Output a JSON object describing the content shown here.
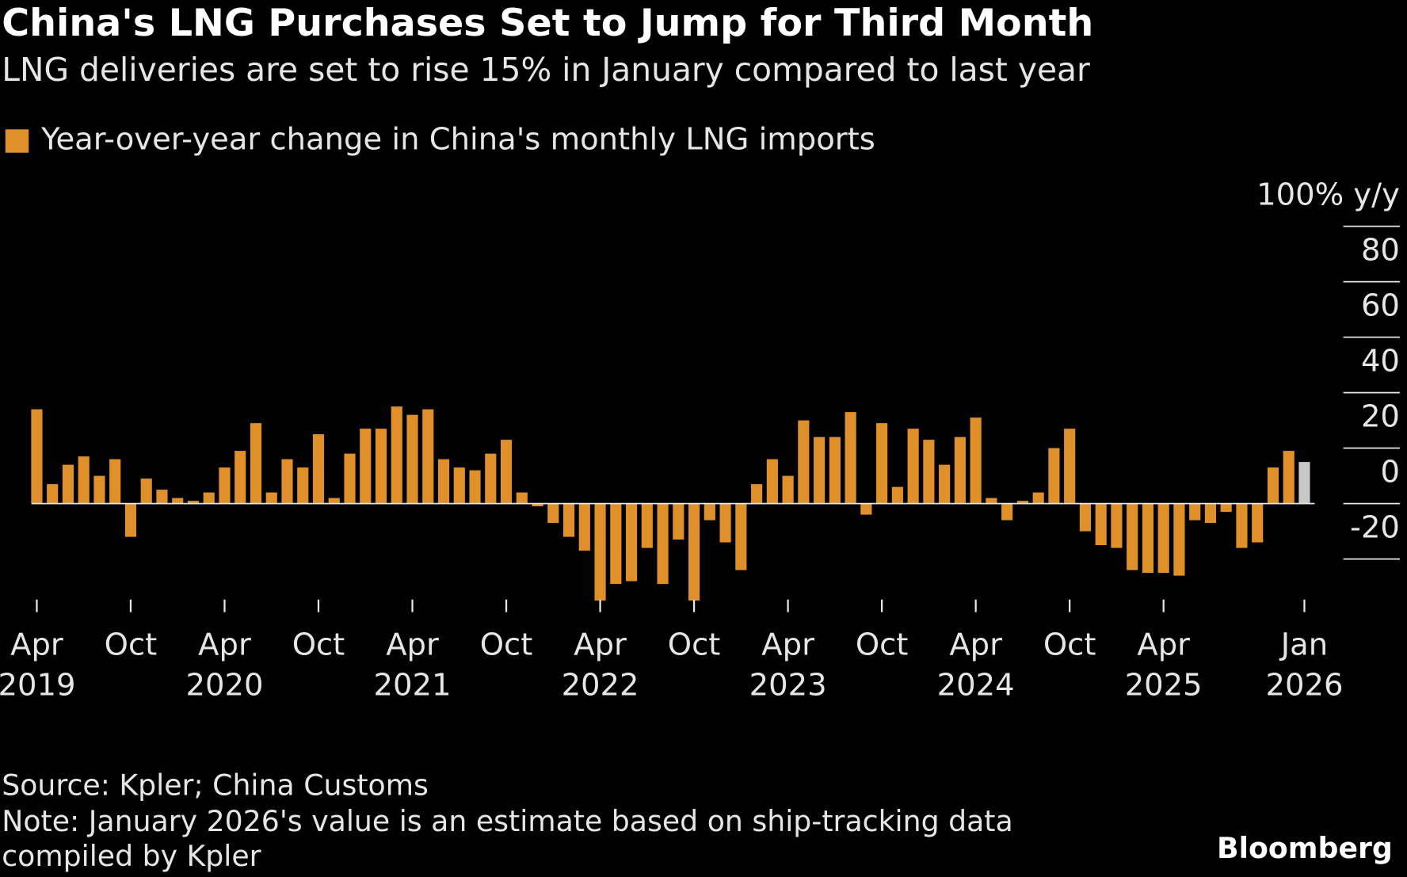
{
  "chart_data": {
    "type": "bar",
    "title": "China's LNG Purchases Set to Jump for Third Month",
    "subtitle": "LNG deliveries are set to rise 15% in January compared to last year",
    "source": "Source: Kpler; China Customs",
    "note": "Note: January 2026's value is an estimate based on ship-tracking data compiled by Kpler",
    "brand": "Bloomberg",
    "categories": [
      "Apr 2019",
      null,
      null,
      null,
      null,
      null,
      "Oct",
      null,
      null,
      null,
      null,
      null,
      "Apr 2020",
      null,
      null,
      null,
      null,
      null,
      "Oct",
      null,
      null,
      null,
      null,
      null,
      "Apr 2021",
      null,
      null,
      null,
      null,
      null,
      "Oct",
      null,
      null,
      null,
      null,
      null,
      "Apr 2022",
      null,
      null,
      null,
      null,
      null,
      "Oct",
      null,
      null,
      null,
      null,
      null,
      "Apr 2023",
      null,
      null,
      null,
      null,
      null,
      "Oct",
      null,
      null,
      null,
      null,
      null,
      "Apr 2024",
      null,
      null,
      null,
      null,
      null,
      "Oct",
      null,
      null,
      null,
      null,
      null,
      "Apr 2025",
      null,
      null,
      null,
      null,
      null,
      null,
      null,
      null,
      "Jan 2026"
    ],
    "series": [
      {
        "name": "Year-over-year change in China's monthly LNG imports",
        "color": "#e0902b",
        "values": [
          34,
          7,
          14,
          17,
          10,
          16,
          -12,
          9,
          5,
          2,
          1,
          4,
          13,
          19,
          29,
          4,
          16,
          13,
          25,
          2,
          18,
          27,
          27,
          35,
          32,
          34,
          16,
          13,
          12,
          18,
          23,
          4,
          -1,
          -7,
          -12,
          -17,
          -35,
          -29,
          -28,
          -16,
          -29,
          -13,
          -35,
          -6,
          -14,
          -24,
          7,
          16,
          10,
          30,
          24,
          24,
          33,
          -4,
          29,
          6,
          27,
          23,
          14,
          24,
          31,
          2,
          -6,
          1,
          4,
          20,
          27,
          -10,
          -15,
          -16,
          -24,
          -25,
          -25,
          -26,
          -6,
          -7,
          -3,
          -16,
          -14,
          13,
          19,
          15
        ],
        "colors": [
          "#e0902b",
          "#e0902b",
          "#e0902b",
          "#e0902b",
          "#e0902b",
          "#e0902b",
          "#e0902b",
          "#e0902b",
          "#e0902b",
          "#e0902b",
          "#e0902b",
          "#e0902b",
          "#e0902b",
          "#e0902b",
          "#e0902b",
          "#e0902b",
          "#e0902b",
          "#e0902b",
          "#e0902b",
          "#e0902b",
          "#e0902b",
          "#e0902b",
          "#e0902b",
          "#e0902b",
          "#e0902b",
          "#e0902b",
          "#e0902b",
          "#e0902b",
          "#e0902b",
          "#e0902b",
          "#e0902b",
          "#e0902b",
          "#e0902b",
          "#e0902b",
          "#e0902b",
          "#e0902b",
          "#e0902b",
          "#e0902b",
          "#e0902b",
          "#e0902b",
          "#e0902b",
          "#e0902b",
          "#e0902b",
          "#e0902b",
          "#e0902b",
          "#e0902b",
          "#e0902b",
          "#e0902b",
          "#e0902b",
          "#e0902b",
          "#e0902b",
          "#e0902b",
          "#e0902b",
          "#e0902b",
          "#e0902b",
          "#e0902b",
          "#e0902b",
          "#e0902b",
          "#e0902b",
          "#e0902b",
          "#e0902b",
          "#e0902b",
          "#e0902b",
          "#e0902b",
          "#e0902b",
          "#e0902b",
          "#e0902b",
          "#e0902b",
          "#e0902b",
          "#e0902b",
          "#e0902b",
          "#e0902b",
          "#e0902b",
          "#e0902b",
          "#e0902b",
          "#e0902b",
          "#e0902b",
          "#e0902b",
          "#e0902b",
          "#e0902b",
          "#e0902b",
          "#c8c8c8"
        ]
      }
    ],
    "ylim": [
      -36,
      100
    ],
    "yticks": [
      -20,
      0,
      20,
      40,
      60,
      80,
      {
        "value": 100,
        "label": "100% y/y"
      }
    ],
    "legend": "top-left"
  }
}
